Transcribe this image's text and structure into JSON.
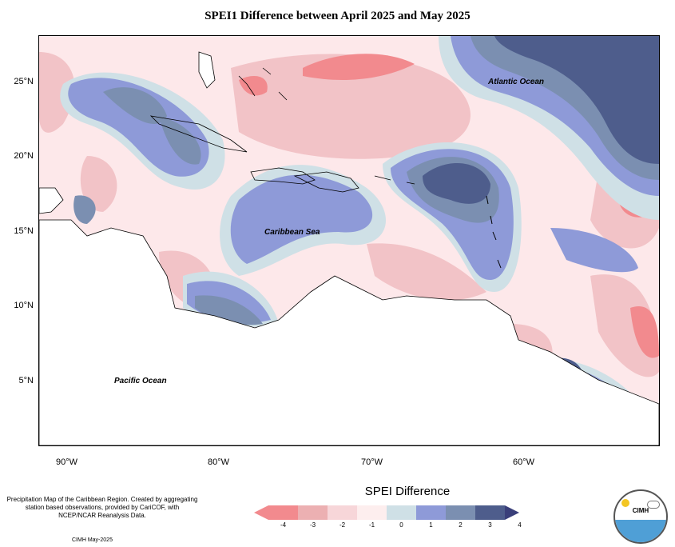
{
  "title": "SPEI1 Difference between April 2025 and May 2025",
  "map_labels": {
    "atlantic": "Atlantic Ocean",
    "caribbean": "Caribbean Sea",
    "pacific": "Pacific Ocean"
  },
  "x_ticks": [
    "90°W",
    "80°W",
    "70°W",
    "60°W"
  ],
  "y_ticks": [
    "25°N",
    "20°N",
    "15°N",
    "10°N",
    "5°N"
  ],
  "legend": {
    "title": "SPEI Difference",
    "labels": [
      "-4",
      "-3",
      "-2",
      "-1",
      "0",
      "1",
      "2",
      "3",
      "4"
    ],
    "colors": [
      "#f28a8e",
      "#ecb0b2",
      "#f7d6d9",
      "#fdeeee",
      "#cfe0e6",
      "#8e9ad8",
      "#7b8fb1",
      "#4e5d8c",
      "#3a3f7a"
    ]
  },
  "note": "Precipitation Map of the Caribbean Region. Created by aggregating station based observations, provided by CariCOF, with NCEP/NCAR Reanalysis Data.",
  "credit": "CIMH May-2025",
  "logo_text": "CIMH"
}
